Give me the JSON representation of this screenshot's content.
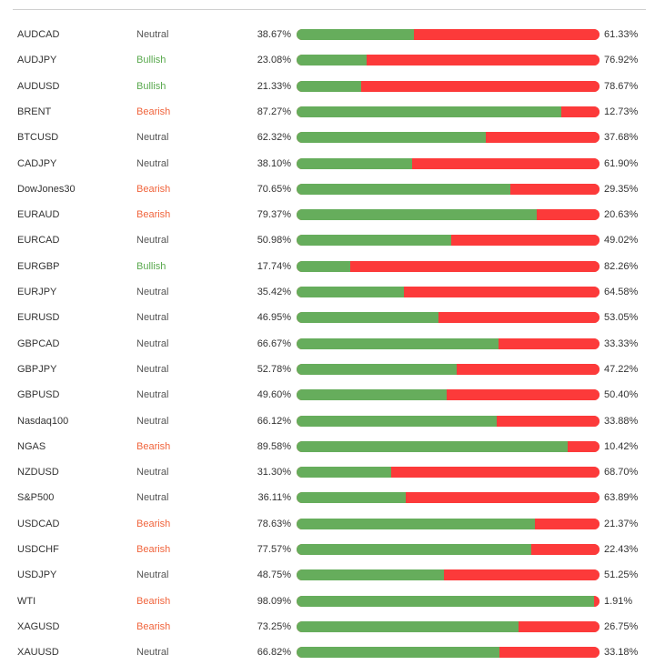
{
  "colors": {
    "long": "#66ad5c",
    "short": "#fc3a3a",
    "bullish": "#5aa94e",
    "bearish": "#f0643c"
  },
  "rows": [
    {
      "symbol": "AUDCAD",
      "sentiment": "Neutral",
      "long": "38.67%",
      "short": "61.33%",
      "long_value": 38.67
    },
    {
      "symbol": "AUDJPY",
      "sentiment": "Bullish",
      "long": "23.08%",
      "short": "76.92%",
      "long_value": 23.08
    },
    {
      "symbol": "AUDUSD",
      "sentiment": "Bullish",
      "long": "21.33%",
      "short": "78.67%",
      "long_value": 21.33
    },
    {
      "symbol": "BRENT",
      "sentiment": "Bearish",
      "long": "87.27%",
      "short": "12.73%",
      "long_value": 87.27
    },
    {
      "symbol": "BTCUSD",
      "sentiment": "Neutral",
      "long": "62.32%",
      "short": "37.68%",
      "long_value": 62.32
    },
    {
      "symbol": "CADJPY",
      "sentiment": "Neutral",
      "long": "38.10%",
      "short": "61.90%",
      "long_value": 38.1
    },
    {
      "symbol": "DowJones30",
      "sentiment": "Bearish",
      "long": "70.65%",
      "short": "29.35%",
      "long_value": 70.65
    },
    {
      "symbol": "EURAUD",
      "sentiment": "Bearish",
      "long": "79.37%",
      "short": "20.63%",
      "long_value": 79.37
    },
    {
      "symbol": "EURCAD",
      "sentiment": "Neutral",
      "long": "50.98%",
      "short": "49.02%",
      "long_value": 50.98
    },
    {
      "symbol": "EURGBP",
      "sentiment": "Bullish",
      "long": "17.74%",
      "short": "82.26%",
      "long_value": 17.74
    },
    {
      "symbol": "EURJPY",
      "sentiment": "Neutral",
      "long": "35.42%",
      "short": "64.58%",
      "long_value": 35.42
    },
    {
      "symbol": "EURUSD",
      "sentiment": "Neutral",
      "long": "46.95%",
      "short": "53.05%",
      "long_value": 46.95
    },
    {
      "symbol": "GBPCAD",
      "sentiment": "Neutral",
      "long": "66.67%",
      "short": "33.33%",
      "long_value": 66.67
    },
    {
      "symbol": "GBPJPY",
      "sentiment": "Neutral",
      "long": "52.78%",
      "short": "47.22%",
      "long_value": 52.78
    },
    {
      "symbol": "GBPUSD",
      "sentiment": "Neutral",
      "long": "49.60%",
      "short": "50.40%",
      "long_value": 49.6
    },
    {
      "symbol": "Nasdaq100",
      "sentiment": "Neutral",
      "long": "66.12%",
      "short": "33.88%",
      "long_value": 66.12
    },
    {
      "symbol": "NGAS",
      "sentiment": "Bearish",
      "long": "89.58%",
      "short": "10.42%",
      "long_value": 89.58
    },
    {
      "symbol": "NZDUSD",
      "sentiment": "Neutral",
      "long": "31.30%",
      "short": "68.70%",
      "long_value": 31.3
    },
    {
      "symbol": "S&P500",
      "sentiment": "Neutral",
      "long": "36.11%",
      "short": "63.89%",
      "long_value": 36.11
    },
    {
      "symbol": "USDCAD",
      "sentiment": "Bearish",
      "long": "78.63%",
      "short": "21.37%",
      "long_value": 78.63
    },
    {
      "symbol": "USDCHF",
      "sentiment": "Bearish",
      "long": "77.57%",
      "short": "22.43%",
      "long_value": 77.57
    },
    {
      "symbol": "USDJPY",
      "sentiment": "Neutral",
      "long": "48.75%",
      "short": "51.25%",
      "long_value": 48.75
    },
    {
      "symbol": "WTI",
      "sentiment": "Bearish",
      "long": "98.09%",
      "short": "1.91%",
      "long_value": 98.09
    },
    {
      "symbol": "XAGUSD",
      "sentiment": "Bearish",
      "long": "73.25%",
      "short": "26.75%",
      "long_value": 73.25
    },
    {
      "symbol": "XAUUSD",
      "sentiment": "Neutral",
      "long": "66.82%",
      "short": "33.18%",
      "long_value": 66.82
    }
  ]
}
